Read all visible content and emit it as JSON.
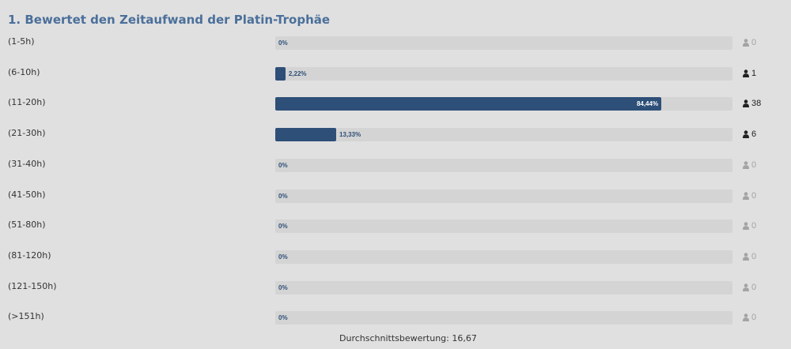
{
  "title": "1. Bewertet den Zeitaufwand der Platin-Trophäe",
  "rows": [
    {
      "label": "(1-5h)",
      "percent": 0,
      "percent_label": "0%",
      "count": "0"
    },
    {
      "label": "(6-10h)",
      "percent": 2.22,
      "percent_label": "2,22%",
      "count": "1"
    },
    {
      "label": "(11-20h)",
      "percent": 84.44,
      "percent_label": "84,44%",
      "count": "38"
    },
    {
      "label": "(21-30h)",
      "percent": 13.33,
      "percent_label": "13,33%",
      "count": "6"
    },
    {
      "label": "(31-40h)",
      "percent": 0,
      "percent_label": "0%",
      "count": "0"
    },
    {
      "label": "(41-50h)",
      "percent": 0,
      "percent_label": "0%",
      "count": "0"
    },
    {
      "label": "(51-80h)",
      "percent": 0,
      "percent_label": "0%",
      "count": "0"
    },
    {
      "label": "(81-120h)",
      "percent": 0,
      "percent_label": "0%",
      "count": "0"
    },
    {
      "label": "(121-150h)",
      "percent": 0,
      "percent_label": "0%",
      "count": "0"
    },
    {
      "label": "(>151h)",
      "percent": 0,
      "percent_label": "0%",
      "count": "0"
    }
  ],
  "average": "Durchschnittsbewertung: 16,67",
  "colors": {
    "bar": "#2e4f77",
    "track": "#d4d4d4",
    "title": "#4a6f9a",
    "count_active": "#222222",
    "count_zero": "#a3a3a3"
  },
  "icons": {
    "voter": "user-icon"
  }
}
